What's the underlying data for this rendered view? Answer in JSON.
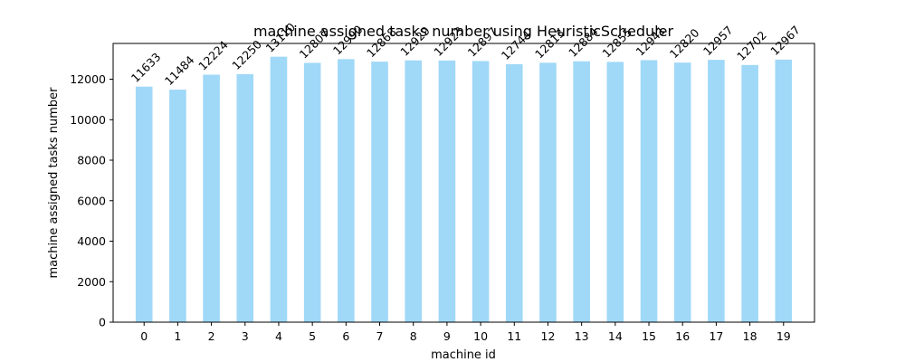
{
  "chart_data": {
    "type": "bar",
    "title": "machine assigned tasks number using HeuristicScheduler",
    "xlabel": "machine id",
    "ylabel": "machine assigned tasks number",
    "categories": [
      "0",
      "1",
      "2",
      "3",
      "4",
      "5",
      "6",
      "7",
      "8",
      "9",
      "10",
      "11",
      "12",
      "13",
      "14",
      "15",
      "16",
      "17",
      "18",
      "19"
    ],
    "values": [
      11633,
      11484,
      12224,
      12250,
      13110,
      12807,
      12990,
      12868,
      12929,
      12923,
      12897,
      12744,
      12813,
      12884,
      12855,
      12941,
      12820,
      12957,
      12702,
      12967
    ],
    "data_labels": [
      "11633",
      "11484",
      "12224",
      "12250",
      "13110",
      "12807",
      "12990",
      "12868",
      "12929",
      "12923",
      "12897",
      "12744",
      "12813",
      "12884",
      "12855",
      "12941",
      "12820",
      "12957",
      "12702",
      "12967"
    ],
    "yticks": [
      0,
      2000,
      4000,
      6000,
      8000,
      10000,
      12000
    ],
    "ylim": [
      0,
      13766
    ],
    "grid": false,
    "legend": "none",
    "bar_color": "#a0d8f8",
    "spine_color": "#000000"
  }
}
